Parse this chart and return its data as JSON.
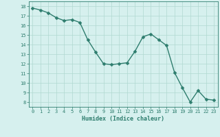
{
  "x": [
    0,
    1,
    2,
    3,
    4,
    5,
    6,
    7,
    8,
    9,
    10,
    11,
    12,
    13,
    14,
    15,
    16,
    17,
    18,
    19,
    20,
    21,
    22,
    23
  ],
  "y": [
    17.8,
    17.6,
    17.3,
    16.8,
    16.5,
    16.6,
    16.3,
    14.5,
    13.2,
    12.0,
    11.9,
    12.0,
    12.1,
    13.3,
    14.8,
    15.1,
    14.5,
    13.9,
    11.1,
    9.5,
    8.0,
    9.2,
    8.3,
    8.2
  ],
  "xlabel": "Humidex (Indice chaleur)",
  "line_color": "#2e7d6e",
  "marker_color": "#2e7d6e",
  "bg_color": "#d6f0ee",
  "grid_color": "#b0d8d0",
  "axis_color": "#2e7d6e",
  "tick_label_color": "#2e7d6e",
  "xlabel_color": "#2e7d6e",
  "xlim": [
    -0.5,
    23.5
  ],
  "ylim": [
    7.5,
    18.5
  ],
  "yticks": [
    8,
    9,
    10,
    11,
    12,
    13,
    14,
    15,
    16,
    17,
    18
  ],
  "xticks": [
    0,
    1,
    2,
    3,
    4,
    5,
    6,
    7,
    8,
    9,
    10,
    11,
    12,
    13,
    14,
    15,
    16,
    17,
    18,
    19,
    20,
    21,
    22,
    23
  ],
  "linewidth": 1.0,
  "markersize": 2.5,
  "tick_fontsize": 5.0,
  "xlabel_fontsize": 6.0
}
